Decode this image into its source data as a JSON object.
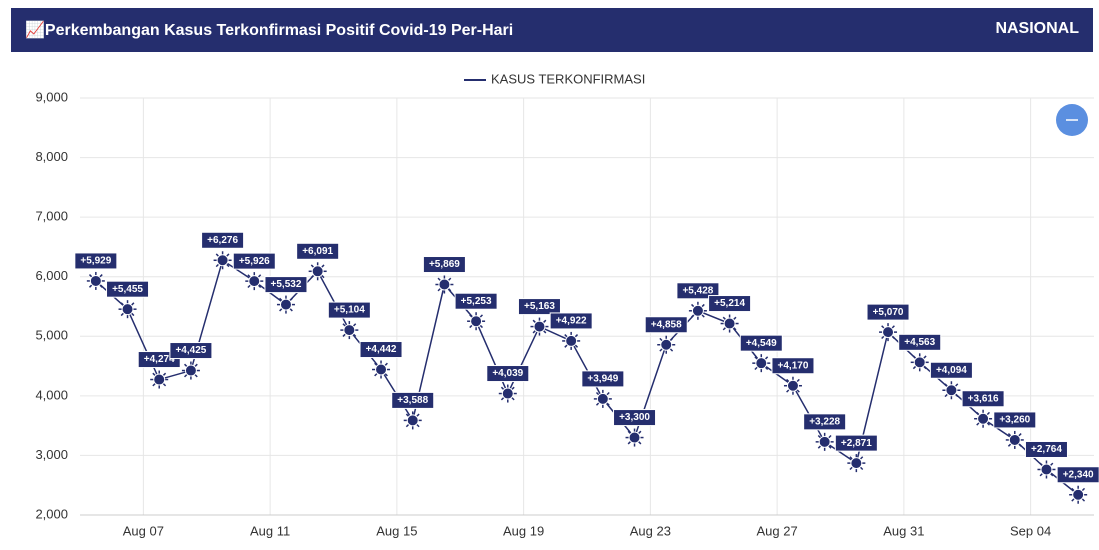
{
  "header": {
    "title": "Perkembangan Kasus Terkonfirmasi Positif Covid-19 Per-Hari",
    "region": "NASIONAL"
  },
  "chart_data": {
    "type": "line",
    "categories": [
      null,
      "Aug 07",
      null,
      null,
      null,
      "Aug 11",
      null,
      null,
      null,
      "Aug 15",
      null,
      null,
      null,
      "Aug 19",
      null,
      null,
      null,
      "Aug 23",
      null,
      null,
      null,
      "Aug 27",
      null,
      null,
      null,
      "Aug 31",
      null,
      null,
      null,
      "Sep 04",
      null,
      null
    ],
    "series": [
      {
        "name": "KASUS TERKONFIRMASI",
        "color": "#252e6e",
        "values": [
          5929,
          5455,
          4274,
          4425,
          6276,
          5926,
          5532,
          6091,
          5104,
          4442,
          3588,
          5869,
          5253,
          4039,
          5163,
          4922,
          3949,
          3300,
          4858,
          5428,
          5214,
          4549,
          4170,
          3228,
          2871,
          5070,
          4563,
          4094,
          3616,
          3260,
          2764,
          2340
        ],
        "value_labels": [
          "+5,929",
          "+5,455",
          "+4,274",
          "+4,425",
          "+6,276",
          "+5,926",
          "+5,532",
          "+6,091",
          "+5,104",
          "+4,442",
          "+3,588",
          "+5,869",
          "+5,253",
          "+4,039",
          "+5,163",
          "+4,922",
          "+3,949",
          "+3,300",
          "+4,858",
          "+5,428",
          "+5,214",
          "+4,549",
          "+4,170",
          "+3,228",
          "+2,871",
          "+5,070",
          "+4,563",
          "+4,094",
          "+3,616",
          "+3,260",
          "+2,764",
          "+2,340"
        ]
      }
    ],
    "ylim": [
      2000,
      9000
    ],
    "yticks": [
      {
        "value": 2000,
        "label": "2,000"
      },
      {
        "value": 3000,
        "label": "3,000"
      },
      {
        "value": 4000,
        "label": "4,000"
      },
      {
        "value": 5000,
        "label": "5,000"
      },
      {
        "value": 6000,
        "label": "6,000"
      },
      {
        "value": 7000,
        "label": "7,000"
      },
      {
        "value": 8000,
        "label": "8,000"
      },
      {
        "value": 9000,
        "label": "9,000"
      }
    ],
    "grid": true,
    "legend": "top"
  }
}
